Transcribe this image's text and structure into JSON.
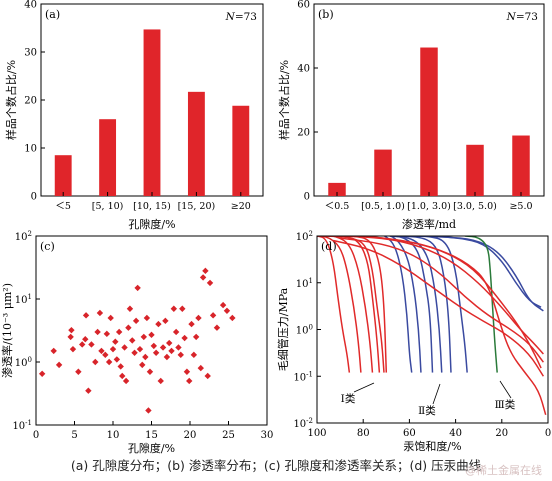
{
  "caption": "(a) 孔隙度分布；(b) 渗透率分布；(c) 孔隙度和渗透率关系；(d) 压汞曲线",
  "watermark": "@稀土金属在线",
  "colors": {
    "bar": "#e0252a",
    "scatter": "#d8242a",
    "curve_red": "#e02a2a",
    "curve_blue": "#3a4aa0",
    "curve_green": "#2a7a3a"
  },
  "chart_data": [
    {
      "panel": "(a)",
      "type": "bar",
      "annotation": "N=73",
      "categories": [
        "＜5",
        "[5, 10)",
        "[10, 15)",
        "[15, 20)",
        "≥20"
      ],
      "values": [
        8.5,
        16,
        34.7,
        21.7,
        18.8
      ],
      "xlabel": "孔隙度/%",
      "ylabel": "样品个数占比/%",
      "ylim": [
        0,
        40
      ],
      "yticks": [
        "0",
        "10",
        "20",
        "30",
        "40"
      ]
    },
    {
      "panel": "(b)",
      "type": "bar",
      "annotation": "N=73",
      "categories": [
        "＜0.5",
        "[0.5, 1.0)",
        "[1.0, 3.0)",
        "[3.0, 5.0)",
        "≥5.0"
      ],
      "values": [
        4.1,
        14.5,
        46.4,
        16,
        18.9
      ],
      "xlabel": "渗透率/md",
      "ylabel": "样品个数占比/%",
      "ylim": [
        0,
        60
      ],
      "yticks": [
        "0",
        "20",
        "40",
        "60"
      ]
    },
    {
      "panel": "(c)",
      "type": "scatter",
      "xlabel": "孔隙度/%",
      "ylabel": "渗透率/(10⁻³ μm²)",
      "xlim": [
        0,
        30
      ],
      "xticks": [
        "0",
        "5",
        "10",
        "15",
        "20",
        "25",
        "30"
      ],
      "ylim": [
        0.1,
        100
      ],
      "yscale": "log",
      "yticks": [
        {
          "base": "10",
          "exp": "-1"
        },
        {
          "base": "10",
          "exp": "0"
        },
        {
          "base": "10",
          "exp": "1"
        },
        {
          "base": "10",
          "exp": "2"
        }
      ],
      "points": [
        [
          0.8,
          0.65
        ],
        [
          2.3,
          1.5
        ],
        [
          3.0,
          0.9
        ],
        [
          4.5,
          2.5
        ],
        [
          4.6,
          3.2
        ],
        [
          4.8,
          1.6
        ],
        [
          5.5,
          0.7
        ],
        [
          6.0,
          1.9
        ],
        [
          6.4,
          2.3
        ],
        [
          6.5,
          5.5
        ],
        [
          6.8,
          0.35
        ],
        [
          7.2,
          1.9
        ],
        [
          7.7,
          1.0
        ],
        [
          8.0,
          3.0
        ],
        [
          8.3,
          6.0
        ],
        [
          8.5,
          1.5
        ],
        [
          9.0,
          1.3
        ],
        [
          9.2,
          2.8
        ],
        [
          9.5,
          1.0
        ],
        [
          9.7,
          5.0
        ],
        [
          10.0,
          1.6
        ],
        [
          10.3,
          2.1
        ],
        [
          10.5,
          1.1
        ],
        [
          10.8,
          3.0
        ],
        [
          11.0,
          0.85
        ],
        [
          11.2,
          0.6
        ],
        [
          11.5,
          1.7
        ],
        [
          11.7,
          0.5
        ],
        [
          12.0,
          3.5
        ],
        [
          12.2,
          7.0
        ],
        [
          12.5,
          2.2
        ],
        [
          12.8,
          1.4
        ],
        [
          13.0,
          4.5
        ],
        [
          13.2,
          15.0
        ],
        [
          13.5,
          1.6
        ],
        [
          13.8,
          0.9
        ],
        [
          14.0,
          2.5
        ],
        [
          14.2,
          1.2
        ],
        [
          14.4,
          5.0
        ],
        [
          14.6,
          0.17
        ],
        [
          14.8,
          0.7
        ],
        [
          15.0,
          2.7
        ],
        [
          15.3,
          1.8
        ],
        [
          15.6,
          1.4
        ],
        [
          15.9,
          4.0
        ],
        [
          16.2,
          0.5
        ],
        [
          16.5,
          1.7
        ],
        [
          16.8,
          4.5
        ],
        [
          17.0,
          1.2
        ],
        [
          17.3,
          2.0
        ],
        [
          17.6,
          1.5
        ],
        [
          17.9,
          7.0
        ],
        [
          18.2,
          3.0
        ],
        [
          18.5,
          1.7
        ],
        [
          18.8,
          1.3
        ],
        [
          19.0,
          7.0
        ],
        [
          19.3,
          2.4
        ],
        [
          19.6,
          0.7
        ],
        [
          19.9,
          0.5
        ],
        [
          20.2,
          4.0
        ],
        [
          20.5,
          1.3
        ],
        [
          20.8,
          2.5
        ],
        [
          21.1,
          5.0
        ],
        [
          21.4,
          0.8
        ],
        [
          21.7,
          22.0
        ],
        [
          22.0,
          28.0
        ],
        [
          22.3,
          0.6
        ],
        [
          22.6,
          18.0
        ],
        [
          23.0,
          5.5
        ],
        [
          23.5,
          3.5
        ],
        [
          24.3,
          8.0
        ],
        [
          24.8,
          6.5
        ],
        [
          25.5,
          5.0
        ]
      ]
    },
    {
      "panel": "(d)",
      "type": "line",
      "xlabel": "汞饱和度/%",
      "ylabel": "毛细管压力/MPa",
      "xlim": [
        100,
        0
      ],
      "xticks": [
        "100",
        "80",
        "60",
        "40",
        "20",
        "0"
      ],
      "ylim": [
        0.01,
        100
      ],
      "yscale": "log",
      "yticks": [
        {
          "base": "10",
          "exp": "-2"
        },
        {
          "base": "10",
          "exp": "-1"
        },
        {
          "base": "10",
          "exp": "0"
        },
        {
          "base": "10",
          "exp": "1"
        },
        {
          "base": "10",
          "exp": "2"
        }
      ],
      "class_labels": [
        "Ⅰ类",
        "Ⅱ类",
        "Ⅲ类"
      ],
      "series": [
        {
          "group": "I",
          "values": [
            [
              100,
              100
            ],
            [
              96,
              90
            ],
            [
              93,
              30
            ],
            [
              91,
              5
            ],
            [
              89,
              1
            ],
            [
              87,
              0.3
            ],
            [
              86,
              0.12
            ]
          ]
        },
        {
          "group": "I",
          "values": [
            [
              100,
              100
            ],
            [
              95,
              95
            ],
            [
              90,
              60
            ],
            [
              87,
              20
            ],
            [
              84,
              3
            ],
            [
              82,
              0.5
            ],
            [
              81,
              0.12
            ]
          ]
        },
        {
          "group": "I",
          "values": [
            [
              99,
              110
            ],
            [
              92,
              100
            ],
            [
              86,
              70
            ],
            [
              82,
              20
            ],
            [
              79,
              3
            ],
            [
              77,
              0.5
            ],
            [
              76,
              0.12
            ]
          ]
        },
        {
          "group": "I",
          "values": [
            [
              98,
              110
            ],
            [
              88,
              100
            ],
            [
              82,
              80
            ],
            [
              78,
              30
            ],
            [
              76,
              5
            ],
            [
              74,
              0.6
            ],
            [
              73,
              0.12
            ]
          ]
        },
        {
          "group": "I",
          "values": [
            [
              97,
              100
            ],
            [
              86,
              95
            ],
            [
              79,
              70
            ],
            [
              76,
              20
            ],
            [
              74,
              3
            ],
            [
              72,
              0.6
            ],
            [
              71,
              0.12
            ]
          ]
        },
        {
          "group": "I",
          "values": [
            [
              96,
              100
            ],
            [
              84,
              100
            ],
            [
              77,
              85
            ],
            [
              73,
              30
            ],
            [
              71,
              4
            ],
            [
              70,
              0.12
            ]
          ]
        },
        {
          "group": "II",
          "values": [
            [
              74,
              110
            ],
            [
              70,
              100
            ],
            [
              66,
              60
            ],
            [
              63,
              15
            ],
            [
              61,
              2
            ],
            [
              60,
              0.3
            ],
            [
              59,
              0.12
            ]
          ]
        },
        {
          "group": "II",
          "values": [
            [
              72,
              110
            ],
            [
              66,
              95
            ],
            [
              61,
              40
            ],
            [
              58,
              8
            ],
            [
              56,
              1
            ],
            [
              55,
              0.12
            ]
          ]
        },
        {
          "group": "II",
          "values": [
            [
              70,
              105
            ],
            [
              62,
              95
            ],
            [
              56,
              50
            ],
            [
              53,
              10
            ],
            [
              51,
              2
            ],
            [
              50,
              0.12
            ]
          ]
        },
        {
          "group": "II",
          "values": [
            [
              68,
              100
            ],
            [
              58,
              90
            ],
            [
              52,
              40
            ],
            [
              49,
              8
            ],
            [
              47,
              1
            ],
            [
              46,
              0.12
            ]
          ]
        },
        {
          "group": "II",
          "values": [
            [
              66,
              100
            ],
            [
              54,
              95
            ],
            [
              48,
              60
            ],
            [
              45,
              15
            ],
            [
              43,
              2
            ],
            [
              42,
              0.12
            ]
          ]
        },
        {
          "group": "II",
          "values": [
            [
              64,
              105
            ],
            [
              52,
              100
            ],
            [
              44,
              80
            ],
            [
              40,
              20
            ],
            [
              38,
              3
            ],
            [
              36,
              0.5
            ],
            [
              35,
              0.12
            ]
          ]
        },
        {
          "group": "II",
          "values": [
            [
              62,
              100
            ],
            [
              48,
              98
            ],
            [
              38,
              90
            ],
            [
              28,
              70
            ],
            [
              20,
              30
            ],
            [
              14,
              10
            ],
            [
              8,
              4
            ],
            [
              3,
              3
            ]
          ]
        },
        {
          "group": "II",
          "values": [
            [
              58,
              100
            ],
            [
              44,
              95
            ],
            [
              32,
              85
            ],
            [
              22,
              50
            ],
            [
              14,
              15
            ],
            [
              8,
              4
            ],
            [
              2,
              2.5
            ]
          ]
        },
        {
          "group": "III",
          "values": [
            [
              36,
              100
            ],
            [
              30,
              95
            ],
            [
              26,
              60
            ],
            [
              25,
              20
            ],
            [
              24,
              3
            ],
            [
              23,
              0.5
            ],
            [
              22,
              0.12
            ]
          ]
        },
        {
          "group": "III",
          "values": [
            [
              88,
              100
            ],
            [
              70,
              90
            ],
            [
              55,
              60
            ],
            [
              42,
              30
            ],
            [
              30,
              10
            ],
            [
              20,
              3
            ],
            [
              12,
              1
            ],
            [
              6,
              0.5
            ],
            [
              2,
              0.3
            ]
          ]
        },
        {
          "group": "III",
          "values": [
            [
              80,
              100
            ],
            [
              62,
              80
            ],
            [
              46,
              50
            ],
            [
              34,
              25
            ],
            [
              26,
              10
            ],
            [
              20,
              1
            ],
            [
              16,
              0.3
            ],
            [
              10,
              0.12
            ],
            [
              4,
              0.05
            ],
            [
              1,
              0.015
            ]
          ]
        },
        {
          "group": "III",
          "values": [
            [
              76,
              95
            ],
            [
              58,
              75
            ],
            [
              44,
              45
            ],
            [
              32,
              20
            ],
            [
              22,
              5
            ],
            [
              14,
              1.5
            ],
            [
              8,
              0.5
            ],
            [
              3,
              0.15
            ]
          ]
        },
        {
          "group": "III",
          "values": [
            [
              90,
              90
            ],
            [
              72,
              70
            ],
            [
              58,
              40
            ],
            [
              46,
              15
            ],
            [
              36,
              5
            ],
            [
              26,
              2
            ],
            [
              16,
              1
            ],
            [
              8,
              0.5
            ],
            [
              2,
              0.2
            ]
          ]
        },
        {
          "group": "III",
          "values": [
            [
              93,
              80
            ],
            [
              78,
              55
            ],
            [
              64,
              25
            ],
            [
              50,
              8
            ],
            [
              38,
              3
            ],
            [
              28,
              1.5
            ],
            [
              18,
              0.8
            ],
            [
              8,
              0.3
            ],
            [
              2,
              0.1
            ]
          ]
        }
      ]
    }
  ]
}
